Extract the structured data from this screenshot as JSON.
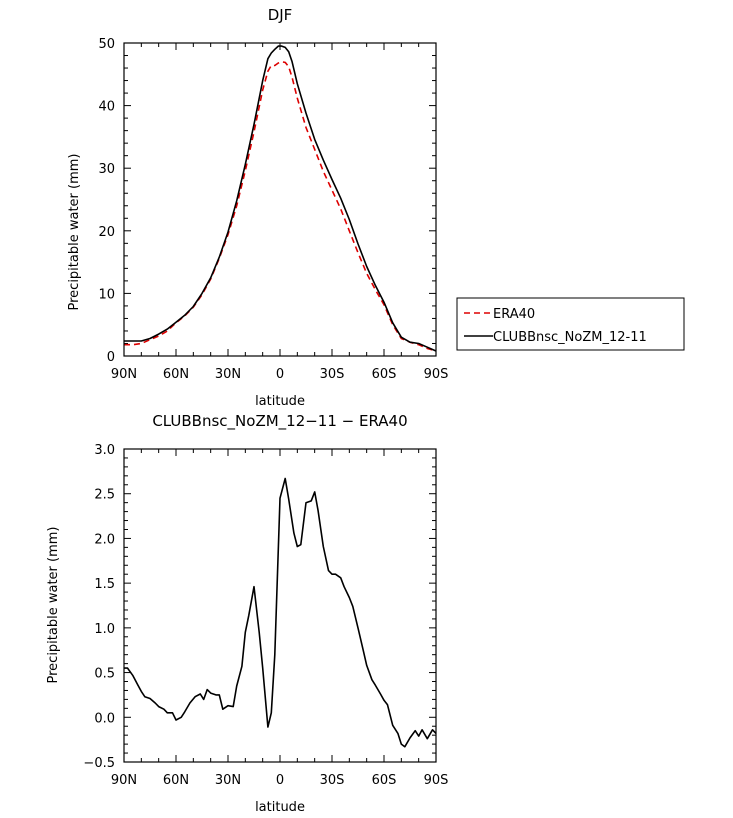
{
  "colors": {
    "era40": "#dd0000",
    "clubb": "#000000",
    "axis": "#000000"
  },
  "chart_data": [
    {
      "type": "line",
      "title": "DJF",
      "xlabel": "latitude",
      "ylabel": "Precipitable water (mm)",
      "xlim": [
        90,
        -90
      ],
      "ylim": [
        0,
        50
      ],
      "xticks": [
        90,
        60,
        30,
        0,
        -30,
        -60,
        -90
      ],
      "xtick_labels": [
        "90N",
        "60N",
        "30N",
        "0",
        "30S",
        "60S",
        "90S"
      ],
      "yticks": [
        0,
        10,
        20,
        30,
        40,
        50
      ],
      "ytick_labels": [
        "0",
        "10",
        "20",
        "30",
        "40",
        "50"
      ],
      "grid": false,
      "legend": {
        "placement": "right-outside"
      },
      "x": [
        90,
        85,
        80,
        75,
        70,
        65,
        60,
        55,
        50,
        45,
        40,
        35,
        30,
        25,
        20,
        15,
        10,
        7,
        5,
        3,
        1,
        -1,
        -3,
        -5,
        -7,
        -10,
        -15,
        -20,
        -25,
        -30,
        -35,
        -40,
        -45,
        -50,
        -55,
        -60,
        -65,
        -70,
        -75,
        -80,
        -85,
        -90
      ],
      "series": [
        {
          "name": "ERA40",
          "style": "dashed",
          "values": [
            1.8,
            1.8,
            2.0,
            2.6,
            3.2,
            4.0,
            5.3,
            6.4,
            7.8,
            9.8,
            12.3,
            15.6,
            19.4,
            24.0,
            29.6,
            35.8,
            42.5,
            45.5,
            46.4,
            46.4,
            46.8,
            47.0,
            46.9,
            46.2,
            44.5,
            41.2,
            36.5,
            33.0,
            29.5,
            26.5,
            23.5,
            20.0,
            16.5,
            13.2,
            10.6,
            8.2,
            5.0,
            2.8,
            2.2,
            1.8,
            1.2,
            0.8
          ]
        },
        {
          "name": "CLUBBnsc_NoZM_12-11",
          "style": "solid",
          "values": [
            2.4,
            2.4,
            2.4,
            2.8,
            3.5,
            4.3,
            5.4,
            6.5,
            7.9,
            10.0,
            12.5,
            15.8,
            19.8,
            24.8,
            30.6,
            37.0,
            44.0,
            47.5,
            48.4,
            49.0,
            49.5,
            49.5,
            49.3,
            48.6,
            47.0,
            43.5,
            38.8,
            34.6,
            31.3,
            28.2,
            25.2,
            21.8,
            17.9,
            14.3,
            11.3,
            8.6,
            5.3,
            3.0,
            2.2,
            2.0,
            1.4,
            0.8
          ]
        }
      ]
    },
    {
      "type": "line",
      "title": "CLUBBnsc_NoZM_12−11 − ERA40",
      "xlabel": "latitude",
      "ylabel": "Precipitable water (mm)",
      "xlim": [
        90,
        -90
      ],
      "ylim": [
        -0.5,
        3.0
      ],
      "xticks": [
        90,
        60,
        30,
        0,
        -30,
        -60,
        -90
      ],
      "xtick_labels": [
        "90N",
        "60N",
        "30N",
        "0",
        "30S",
        "60S",
        "90S"
      ],
      "yticks": [
        -0.5,
        0,
        0.5,
        1.0,
        1.5,
        2.0,
        2.5,
        3.0
      ],
      "ytick_labels": [
        "−0.5",
        "0.0",
        "0.5",
        "1.0",
        "1.5",
        "2.0",
        "2.5",
        "3.0"
      ],
      "grid": false,
      "x": [
        90,
        88,
        85,
        82,
        80,
        78,
        75,
        72,
        70,
        67,
        65,
        62,
        60,
        57,
        55,
        52,
        49,
        46,
        44,
        42,
        40,
        37,
        35,
        33,
        30,
        27,
        25,
        22,
        20,
        18,
        15,
        12,
        10,
        7,
        5,
        3,
        0,
        -3,
        -5,
        -8,
        -10,
        -12,
        -15,
        -18,
        -20,
        -22,
        -25,
        -28,
        -30,
        -32,
        -35,
        -37,
        -40,
        -42,
        -45,
        -48,
        -50,
        -53,
        -55,
        -58,
        -60,
        -62,
        -65,
        -68,
        -70,
        -72,
        -75,
        -78,
        -80,
        -82,
        -85,
        -88,
        -90
      ],
      "series": [
        {
          "name": "",
          "style": "solid",
          "values": [
            0.55,
            0.55,
            0.47,
            0.36,
            0.29,
            0.23,
            0.21,
            0.16,
            0.12,
            0.09,
            0.05,
            0.05,
            -0.03,
            0.0,
            0.06,
            0.16,
            0.23,
            0.26,
            0.2,
            0.31,
            0.27,
            0.25,
            0.25,
            0.09,
            0.13,
            0.12,
            0.35,
            0.57,
            0.95,
            1.14,
            1.46,
            0.95,
            0.55,
            -0.11,
            0.05,
            0.7,
            2.45,
            2.67,
            2.44,
            2.06,
            1.91,
            1.93,
            2.4,
            2.42,
            2.52,
            2.31,
            1.91,
            1.64,
            1.6,
            1.6,
            1.56,
            1.46,
            1.34,
            1.24,
            1.0,
            0.75,
            0.58,
            0.42,
            0.36,
            0.26,
            0.19,
            0.14,
            -0.09,
            -0.18,
            -0.3,
            -0.33,
            -0.23,
            -0.15,
            -0.21,
            -0.14,
            -0.24,
            -0.14,
            -0.18
          ]
        }
      ]
    }
  ]
}
